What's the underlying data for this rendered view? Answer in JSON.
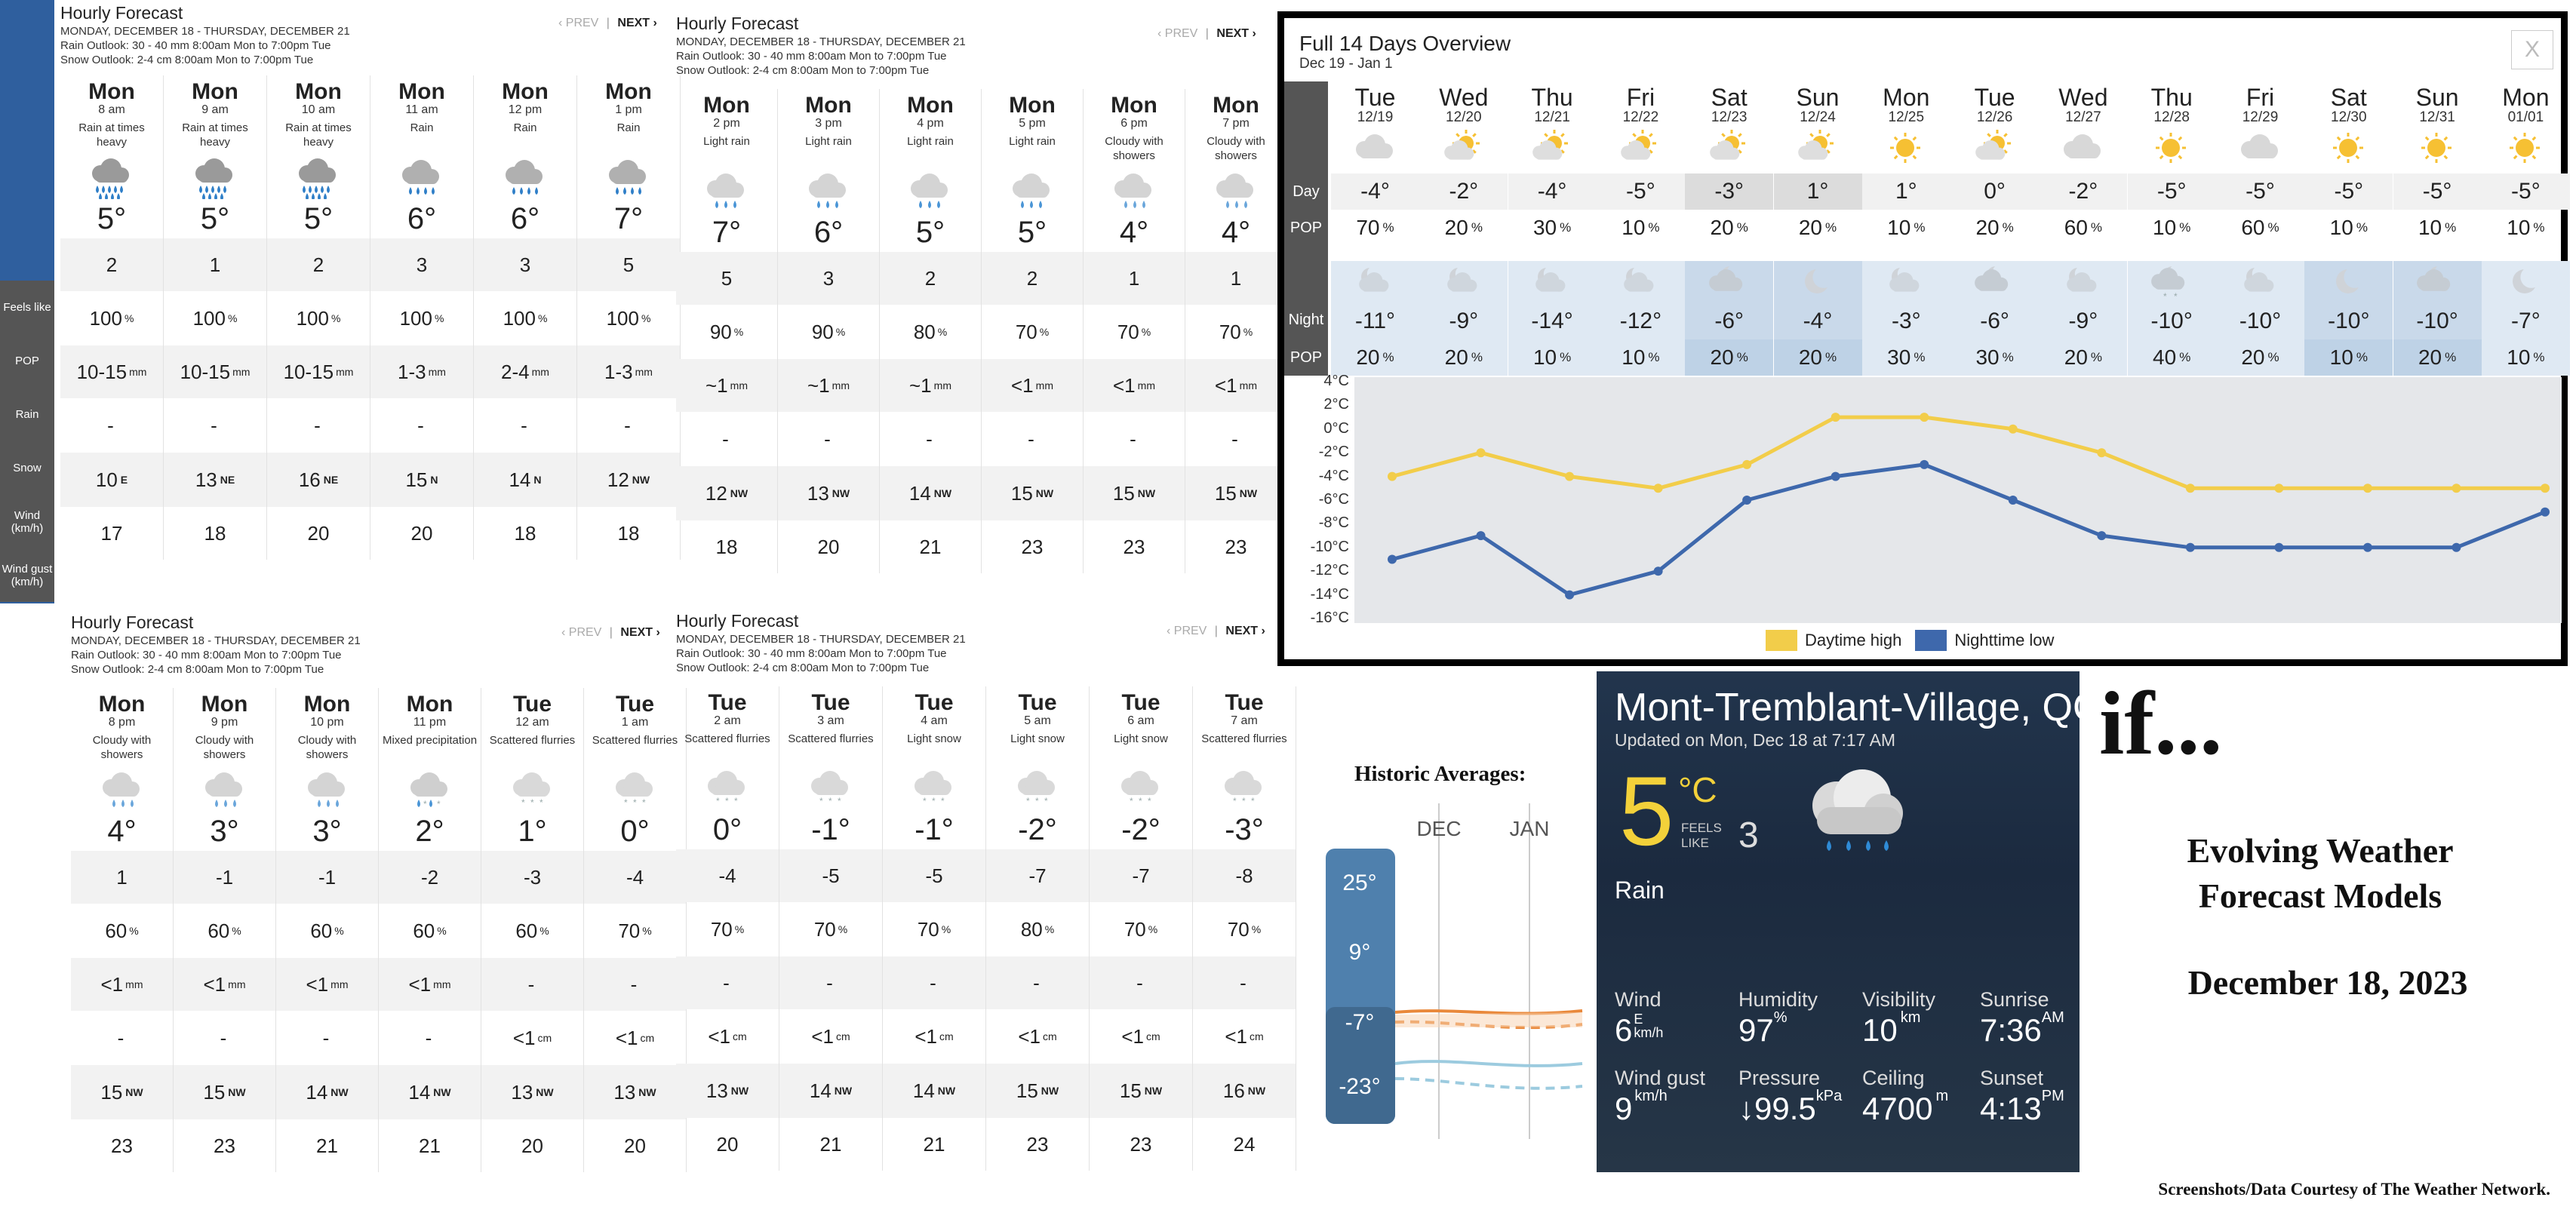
{
  "hourly_panels": [
    {
      "title": "Hourly Forecast",
      "dates": "MONDAY, DECEMBER 18 - THURSDAY, DECEMBER 21",
      "rain_outlook": "Rain Outlook: 30 - 40 mm 8:00am Mon to 7:00pm Tue",
      "snow_outlook": "Snow Outlook: 2-4 cm 8:00am Mon to 7:00pm Tue",
      "prev": "‹ PREV",
      "sep": "|",
      "next": "NEXT ›",
      "hours": [
        {
          "day": "Mon",
          "time": "8 am",
          "cond": "Rain at times heavy",
          "icon": "heavy-rain-icon",
          "temp": "5°",
          "feels": "2",
          "pop": "100",
          "rain": "10-15",
          "rain_unit": "mm",
          "snow": "-",
          "snow_unit": "",
          "wind": "10",
          "wind_dir": "E",
          "gust": "17"
        },
        {
          "day": "Mon",
          "time": "9 am",
          "cond": "Rain at times heavy",
          "icon": "heavy-rain-icon",
          "temp": "5°",
          "feels": "1",
          "pop": "100",
          "rain": "10-15",
          "rain_unit": "mm",
          "snow": "-",
          "snow_unit": "",
          "wind": "13",
          "wind_dir": "NE",
          "gust": "18"
        },
        {
          "day": "Mon",
          "time": "10 am",
          "cond": "Rain at times heavy",
          "icon": "heavy-rain-icon",
          "temp": "5°",
          "feels": "2",
          "pop": "100",
          "rain": "10-15",
          "rain_unit": "mm",
          "snow": "-",
          "snow_unit": "",
          "wind": "16",
          "wind_dir": "NE",
          "gust": "20"
        },
        {
          "day": "Mon",
          "time": "11 am",
          "cond": "Rain",
          "icon": "rain-icon",
          "temp": "6°",
          "feels": "3",
          "pop": "100",
          "rain": "1-3",
          "rain_unit": "mm",
          "snow": "-",
          "snow_unit": "",
          "wind": "15",
          "wind_dir": "N",
          "gust": "20"
        },
        {
          "day": "Mon",
          "time": "12 pm",
          "cond": "Rain",
          "icon": "rain-icon",
          "temp": "6°",
          "feels": "3",
          "pop": "100",
          "rain": "2-4",
          "rain_unit": "mm",
          "snow": "-",
          "snow_unit": "",
          "wind": "14",
          "wind_dir": "N",
          "gust": "18"
        },
        {
          "day": "Mon",
          "time": "1 pm",
          "cond": "Rain",
          "icon": "rain-icon",
          "temp": "7°",
          "feels": "5",
          "pop": "100",
          "rain": "1-3",
          "rain_unit": "mm",
          "snow": "-",
          "snow_unit": "",
          "wind": "12",
          "wind_dir": "NW",
          "gust": "18"
        }
      ]
    },
    {
      "title": "Hourly Forecast",
      "dates": "MONDAY, DECEMBER 18 - THURSDAY, DECEMBER 21",
      "rain_outlook": "Rain Outlook: 30 - 40 mm 8:00am Mon to 7:00pm Tue",
      "snow_outlook": "Snow Outlook: 2-4 cm 8:00am Mon to 7:00pm Tue",
      "prev": "‹ PREV",
      "sep": "|",
      "next": "NEXT ›",
      "hours": [
        {
          "day": "Mon",
          "time": "2 pm",
          "cond": "Light rain",
          "icon": "light-rain-icon",
          "temp": "7°",
          "feels": "5",
          "pop": "90",
          "rain": "~1",
          "rain_unit": "mm",
          "snow": "-",
          "snow_unit": "",
          "wind": "12",
          "wind_dir": "NW",
          "gust": "18"
        },
        {
          "day": "Mon",
          "time": "3 pm",
          "cond": "Light rain",
          "icon": "light-rain-icon",
          "temp": "6°",
          "feels": "3",
          "pop": "90",
          "rain": "~1",
          "rain_unit": "mm",
          "snow": "-",
          "snow_unit": "",
          "wind": "13",
          "wind_dir": "NW",
          "gust": "20"
        },
        {
          "day": "Mon",
          "time": "4 pm",
          "cond": "Light rain",
          "icon": "light-rain-icon",
          "temp": "5°",
          "feels": "2",
          "pop": "80",
          "rain": "~1",
          "rain_unit": "mm",
          "snow": "-",
          "snow_unit": "",
          "wind": "14",
          "wind_dir": "NW",
          "gust": "21"
        },
        {
          "day": "Mon",
          "time": "5 pm",
          "cond": "Light rain",
          "icon": "light-rain-icon",
          "temp": "5°",
          "feels": "2",
          "pop": "70",
          "rain": "<1",
          "rain_unit": "mm",
          "snow": "-",
          "snow_unit": "",
          "wind": "15",
          "wind_dir": "NW",
          "gust": "23"
        },
        {
          "day": "Mon",
          "time": "6 pm",
          "cond": "Cloudy with showers",
          "icon": "showers-icon",
          "temp": "4°",
          "feels": "1",
          "pop": "70",
          "rain": "<1",
          "rain_unit": "mm",
          "snow": "-",
          "snow_unit": "",
          "wind": "15",
          "wind_dir": "NW",
          "gust": "23"
        },
        {
          "day": "Mon",
          "time": "7 pm",
          "cond": "Cloudy with showers",
          "icon": "showers-icon",
          "temp": "4°",
          "feels": "1",
          "pop": "70",
          "rain": "<1",
          "rain_unit": "mm",
          "snow": "-",
          "snow_unit": "",
          "wind": "15",
          "wind_dir": "NW",
          "gust": "23"
        }
      ]
    },
    {
      "title": "Hourly Forecast",
      "dates": "MONDAY, DECEMBER 18 - THURSDAY, DECEMBER 21",
      "rain_outlook": "Rain Outlook: 30 - 40 mm 8:00am Mon to 7:00pm Tue",
      "snow_outlook": "Snow Outlook: 2-4 cm 8:00am Mon to 7:00pm Tue",
      "prev": "‹ PREV",
      "sep": "|",
      "next": "NEXT ›",
      "hours": [
        {
          "day": "Mon",
          "time": "8 pm",
          "cond": "Cloudy with showers",
          "icon": "showers-icon",
          "temp": "4°",
          "feels": "1",
          "pop": "60",
          "rain": "<1",
          "rain_unit": "mm",
          "snow": "-",
          "snow_unit": "",
          "wind": "15",
          "wind_dir": "NW",
          "gust": "23"
        },
        {
          "day": "Mon",
          "time": "9 pm",
          "cond": "Cloudy with showers",
          "icon": "showers-icon",
          "temp": "3°",
          "feels": "-1",
          "pop": "60",
          "rain": "<1",
          "rain_unit": "mm",
          "snow": "-",
          "snow_unit": "",
          "wind": "15",
          "wind_dir": "NW",
          "gust": "23"
        },
        {
          "day": "Mon",
          "time": "10 pm",
          "cond": "Cloudy with showers",
          "icon": "showers-icon",
          "temp": "3°",
          "feels": "-1",
          "pop": "60",
          "rain": "<1",
          "rain_unit": "mm",
          "snow": "-",
          "snow_unit": "",
          "wind": "14",
          "wind_dir": "NW",
          "gust": "21"
        },
        {
          "day": "Mon",
          "time": "11 pm",
          "cond": "Mixed precipitation",
          "icon": "mixed-precip-icon",
          "temp": "2°",
          "feels": "-2",
          "pop": "60",
          "rain": "<1",
          "rain_unit": "mm",
          "snow": "-",
          "snow_unit": "",
          "wind": "14",
          "wind_dir": "NW",
          "gust": "21"
        },
        {
          "day": "Tue",
          "time": "12 am",
          "cond": "Scattered flurries",
          "icon": "flurries-icon",
          "temp": "1°",
          "feels": "-3",
          "pop": "60",
          "rain": "-",
          "rain_unit": "",
          "snow": "<1",
          "snow_unit": "cm",
          "wind": "13",
          "wind_dir": "NW",
          "gust": "20"
        },
        {
          "day": "Tue",
          "time": "1 am",
          "cond": "Scattered flurries",
          "icon": "flurries-icon",
          "temp": "0°",
          "feels": "-4",
          "pop": "70",
          "rain": "-",
          "rain_unit": "",
          "snow": "<1",
          "snow_unit": "cm",
          "wind": "13",
          "wind_dir": "NW",
          "gust": "20"
        }
      ]
    },
    {
      "title": "Hourly Forecast",
      "dates": "MONDAY, DECEMBER 18 - THURSDAY, DECEMBER 21",
      "rain_outlook": "Rain Outlook: 30 - 40 mm 8:00am Mon to 7:00pm Tue",
      "snow_outlook": "Snow Outlook: 2-4 cm 8:00am Mon to 7:00pm Tue",
      "prev": "‹ PREV",
      "sep": "|",
      "next": "NEXT ›",
      "hours": [
        {
          "day": "Tue",
          "time": "2 am",
          "cond": "Scattered flurries",
          "icon": "flurries-icon",
          "temp": "0°",
          "feels": "-4",
          "pop": "70",
          "rain": "-",
          "rain_unit": "",
          "snow": "<1",
          "snow_unit": "cm",
          "wind": "13",
          "wind_dir": "NW",
          "gust": "20"
        },
        {
          "day": "Tue",
          "time": "3 am",
          "cond": "Scattered flurries",
          "icon": "flurries-icon",
          "temp": "-1°",
          "feels": "-5",
          "pop": "70",
          "rain": "-",
          "rain_unit": "",
          "snow": "<1",
          "snow_unit": "cm",
          "wind": "14",
          "wind_dir": "NW",
          "gust": "21"
        },
        {
          "day": "Tue",
          "time": "4 am",
          "cond": "Light snow",
          "icon": "light-snow-icon",
          "temp": "-1°",
          "feels": "-5",
          "pop": "70",
          "rain": "-",
          "rain_unit": "",
          "snow": "<1",
          "snow_unit": "cm",
          "wind": "14",
          "wind_dir": "NW",
          "gust": "21"
        },
        {
          "day": "Tue",
          "time": "5 am",
          "cond": "Light snow",
          "icon": "light-snow-icon",
          "temp": "-2°",
          "feels": "-7",
          "pop": "80",
          "rain": "-",
          "rain_unit": "",
          "snow": "<1",
          "snow_unit": "cm",
          "wind": "15",
          "wind_dir": "NW",
          "gust": "23"
        },
        {
          "day": "Tue",
          "time": "6 am",
          "cond": "Light snow",
          "icon": "light-snow-icon",
          "temp": "-2°",
          "feels": "-7",
          "pop": "70",
          "rain": "-",
          "rain_unit": "",
          "snow": "<1",
          "snow_unit": "cm",
          "wind": "15",
          "wind_dir": "NW",
          "gust": "23"
        },
        {
          "day": "Tue",
          "time": "7 am",
          "cond": "Scattered flurries",
          "icon": "flurries-icon",
          "temp": "-3°",
          "feels": "-8",
          "pop": "70",
          "rain": "-",
          "rain_unit": "",
          "snow": "<1",
          "snow_unit": "cm",
          "wind": "16",
          "wind_dir": "NW",
          "gust": "24"
        }
      ]
    }
  ],
  "row_labels": {
    "feels": "Feels like",
    "pop": "POP",
    "rain": "Rain",
    "snow": "Snow",
    "wind": "Wind (km/h)",
    "gust": "Wind gust (km/h)"
  },
  "pct_sign": "%",
  "overview": {
    "title": "Full 14 Days Overview",
    "range": "Dec 19 - Jan 1",
    "close": "X",
    "labels": {
      "day": "Day",
      "pop": "POP",
      "night": "Night",
      "npop": "POP"
    },
    "days": [
      {
        "day": "Tue",
        "date": "12/19",
        "day_icon": "cloud-icon",
        "day_temp": "-4°",
        "day_pop": "70",
        "night_icon": "cloudy-night-icon",
        "night_temp": "-11°",
        "night_pop": "20"
      },
      {
        "day": "Wed",
        "date": "12/20",
        "day_icon": "partly-sunny-icon",
        "day_temp": "-2°",
        "day_pop": "20",
        "night_icon": "cloudy-night-icon",
        "night_temp": "-9°",
        "night_pop": "20"
      },
      {
        "day": "Thu",
        "date": "12/21",
        "day_icon": "partly-sunny-icon",
        "day_temp": "-4°",
        "day_pop": "30",
        "night_icon": "cloudy-night-icon",
        "night_temp": "-14°",
        "night_pop": "10"
      },
      {
        "day": "Fri",
        "date": "12/22",
        "day_icon": "partly-sunny-icon",
        "day_temp": "-5°",
        "day_pop": "10",
        "night_icon": "cloudy-night-icon",
        "night_temp": "-12°",
        "night_pop": "10"
      },
      {
        "day": "Sat",
        "date": "12/23",
        "day_icon": "partly-sunny-icon",
        "day_temp": "-3°",
        "day_pop": "20",
        "night_icon": "mostly-cloudy-night-icon",
        "night_temp": "-6°",
        "night_pop": "20"
      },
      {
        "day": "Sun",
        "date": "12/24",
        "day_icon": "partly-sunny-icon",
        "day_temp": "1°",
        "day_pop": "20",
        "night_icon": "clear-night-icon",
        "night_temp": "-4°",
        "night_pop": "20"
      },
      {
        "day": "Mon",
        "date": "12/25",
        "day_icon": "sun-icon",
        "day_temp": "1°",
        "day_pop": "10",
        "night_icon": "cloudy-night-icon",
        "night_temp": "-3°",
        "night_pop": "30"
      },
      {
        "day": "Tue",
        "date": "12/26",
        "day_icon": "partly-sunny-icon",
        "day_temp": "0°",
        "day_pop": "20",
        "night_icon": "mostly-cloudy-night-icon",
        "night_temp": "-6°",
        "night_pop": "30"
      },
      {
        "day": "Wed",
        "date": "12/27",
        "day_icon": "cloud-icon",
        "day_temp": "-2°",
        "day_pop": "60",
        "night_icon": "cloudy-night-icon",
        "night_temp": "-9°",
        "night_pop": "20"
      },
      {
        "day": "Thu",
        "date": "12/28",
        "day_icon": "sun-icon",
        "day_temp": "-5°",
        "day_pop": "10",
        "night_icon": "flurries-night-icon",
        "night_temp": "-10°",
        "night_pop": "40"
      },
      {
        "day": "Fri",
        "date": "12/29",
        "day_icon": "cloud-icon",
        "day_temp": "-5°",
        "day_pop": "60",
        "night_icon": "cloudy-night-icon",
        "night_temp": "-10°",
        "night_pop": "20"
      },
      {
        "day": "Sat",
        "date": "12/30",
        "day_icon": "sun-icon",
        "day_temp": "-5°",
        "day_pop": "10",
        "night_icon": "clear-night-icon",
        "night_temp": "-10°",
        "night_pop": "10"
      },
      {
        "day": "Sun",
        "date": "12/31",
        "day_icon": "sun-icon",
        "day_temp": "-5°",
        "day_pop": "10",
        "night_icon": "mostly-cloudy-night-icon",
        "night_temp": "-10°",
        "night_pop": "20"
      },
      {
        "day": "Mon",
        "date": "01/01",
        "day_icon": "sun-icon",
        "day_temp": "-5°",
        "day_pop": "10",
        "night_icon": "clear-night-icon",
        "night_temp": "-7°",
        "night_pop": "10"
      }
    ]
  },
  "chart_data": {
    "type": "line",
    "categories": [
      "12/19",
      "12/20",
      "12/21",
      "12/22",
      "12/23",
      "12/24",
      "12/25",
      "12/26",
      "12/27",
      "12/28",
      "12/29",
      "12/30",
      "12/31",
      "01/01"
    ],
    "series": [
      {
        "name": "Daytime high",
        "color": "#f2cd4a",
        "values": [
          -4,
          -2,
          -4,
          -5,
          -3,
          1,
          1,
          0,
          -2,
          -5,
          -5,
          -5,
          -5,
          -5
        ]
      },
      {
        "name": "Nighttime low",
        "color": "#3e68ac",
        "values": [
          -11,
          -9,
          -14,
          -12,
          -6,
          -4,
          -3,
          -6,
          -9,
          -10,
          -10,
          -10,
          -10,
          -7
        ]
      }
    ],
    "ylim": [
      -16,
      4
    ],
    "yticks": [
      "4°C",
      "2°C",
      "0°C",
      "-2°C",
      "-4°C",
      "-6°C",
      "-8°C",
      "-10°C",
      "-12°C",
      "-14°C",
      "-16°C"
    ],
    "grid": false,
    "legend": "bottom"
  },
  "historic": {
    "title": "Historic Averages:",
    "months": [
      "DEC",
      "JAN"
    ],
    "scale": [
      "25°",
      "9°",
      "-7°",
      "-23°"
    ]
  },
  "current": {
    "location": "Mont-Tremblant-Village, QC",
    "updated": "Updated on Mon, Dec 18 at 7:17 AM",
    "temp": "5",
    "unit": "°C",
    "feels_label_1": "FEELS",
    "feels_label_2": "LIKE",
    "feels": "3",
    "condition": "Rain",
    "icon": "rain-cloud-icon",
    "wind_label": "Wind",
    "wind": "6",
    "wind_dir": "E",
    "wind_unit": "km/h",
    "humidity_label": "Humidity",
    "humidity": "97",
    "humidity_unit": "%",
    "visibility_label": "Visibility",
    "visibility": "10",
    "visibility_unit": "km",
    "sunrise_label": "Sunrise",
    "sunrise": "7:36",
    "sunrise_ampm": "AM",
    "gust_label": "Wind gust",
    "gust": "9",
    "gust_unit": "km/h",
    "pressure_label": "Pressure",
    "pressure": "↓99.5",
    "pressure_unit": "kPa",
    "ceiling_label": "Ceiling",
    "ceiling": "4700",
    "ceiling_unit": "m",
    "sunset_label": "Sunset",
    "sunset": "4:13",
    "sunset_ampm": "PM"
  },
  "brand": "if...",
  "headline_1": "Evolving Weather",
  "headline_2": "Forecast Models",
  "date": "December 18, 2023",
  "credit": "Screenshots/Data Courtesy of The Weather Network."
}
